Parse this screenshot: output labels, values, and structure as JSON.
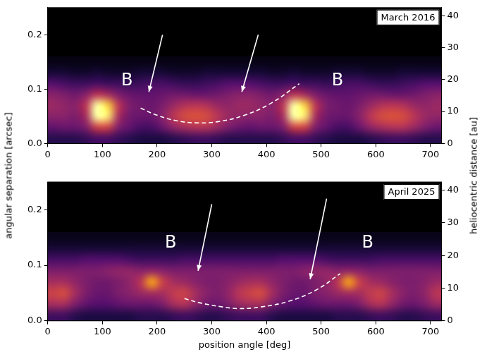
{
  "chart_data": [
    {
      "type": "heatmap",
      "title": "March 2016",
      "y_label": "angular separation [arcsec]",
      "y2_label": "heliocentric distance [au]",
      "xlim": [
        0,
        720
      ],
      "xticks": [
        0,
        100,
        200,
        300,
        400,
        500,
        600,
        700
      ],
      "ylim": [
        0,
        0.25
      ],
      "yticks": [
        {
          "value": 0,
          "label": "0.0"
        },
        {
          "value": 0.1,
          "label": "0.1"
        },
        {
          "value": 0.2,
          "label": "0.2"
        }
      ],
      "y2lim": [
        0,
        42.5
      ],
      "y2ticks": [
        0,
        10,
        20,
        30,
        40
      ],
      "heatmap": {
        "x_bins": [
          0,
          20,
          40,
          60,
          80,
          100,
          120,
          140,
          160,
          180,
          200,
          220,
          240,
          260,
          280,
          300,
          320,
          340,
          360,
          380,
          400,
          420,
          440,
          460,
          480,
          500,
          520,
          540,
          560,
          580,
          600,
          620,
          640,
          660,
          680,
          700,
          720
        ],
        "y_bins": [
          0,
          0.02,
          0.04,
          0.06,
          0.08,
          0.1,
          0.12,
          0.14,
          0.16
        ],
        "cells": [
          [
            0.15,
            0.15,
            0.15,
            0.18,
            0.22,
            0.22,
            0.18,
            0.15,
            0.12,
            0.12,
            0.12,
            0.15,
            0.18,
            0.2,
            0.2,
            0.18,
            0.15,
            0.15,
            0.15,
            0.15,
            0.15,
            0.18,
            0.22,
            0.22,
            0.18,
            0.15,
            0.12,
            0.12,
            0.12,
            0.15,
            0.18,
            0.2,
            0.2,
            0.18,
            0.15,
            0.15
          ],
          [
            0.28,
            0.3,
            0.3,
            0.35,
            0.55,
            0.55,
            0.35,
            0.28,
            0.22,
            0.22,
            0.3,
            0.4,
            0.45,
            0.48,
            0.48,
            0.42,
            0.35,
            0.3,
            0.28,
            0.3,
            0.3,
            0.35,
            0.55,
            0.55,
            0.35,
            0.28,
            0.22,
            0.22,
            0.3,
            0.4,
            0.45,
            0.48,
            0.48,
            0.42,
            0.35,
            0.3
          ],
          [
            0.38,
            0.38,
            0.35,
            0.45,
            1,
            0.95,
            0.45,
            0.32,
            0.3,
            0.3,
            0.38,
            0.5,
            0.58,
            0.6,
            0.58,
            0.5,
            0.42,
            0.4,
            0.38,
            0.38,
            0.35,
            0.45,
            1,
            0.95,
            0.45,
            0.32,
            0.3,
            0.3,
            0.38,
            0.5,
            0.58,
            0.6,
            0.58,
            0.5,
            0.42,
            0.4
          ],
          [
            0.42,
            0.4,
            0.38,
            0.5,
            1,
            0.9,
            0.5,
            0.35,
            0.32,
            0.3,
            0.35,
            0.42,
            0.48,
            0.5,
            0.48,
            0.42,
            0.4,
            0.42,
            0.42,
            0.4,
            0.38,
            0.5,
            1,
            0.9,
            0.5,
            0.35,
            0.32,
            0.3,
            0.35,
            0.42,
            0.48,
            0.5,
            0.48,
            0.42,
            0.4,
            0.42
          ],
          [
            0.38,
            0.35,
            0.32,
            0.38,
            0.5,
            0.45,
            0.35,
            0.3,
            0.28,
            0.28,
            0.3,
            0.32,
            0.32,
            0.3,
            0.3,
            0.32,
            0.35,
            0.38,
            0.38,
            0.35,
            0.32,
            0.38,
            0.5,
            0.45,
            0.35,
            0.3,
            0.28,
            0.28,
            0.3,
            0.32,
            0.32,
            0.3,
            0.3,
            0.32,
            0.35,
            0.38
          ],
          [
            0.25,
            0.22,
            0.2,
            0.2,
            0.22,
            0.2,
            0.2,
            0.18,
            0.2,
            0.22,
            0.22,
            0.2,
            0.18,
            0.18,
            0.2,
            0.22,
            0.25,
            0.25,
            0.25,
            0.22,
            0.2,
            0.2,
            0.22,
            0.2,
            0.2,
            0.18,
            0.2,
            0.22,
            0.22,
            0.2,
            0.18,
            0.18,
            0.2,
            0.22,
            0.25,
            0.25
          ],
          [
            0.1,
            0.1,
            0.08,
            0.08,
            0.1,
            0.08,
            0.08,
            0.08,
            0.1,
            0.1,
            0.1,
            0.08,
            0.08,
            0.08,
            0.1,
            0.1,
            0.1,
            0.1,
            0.1,
            0.1,
            0.08,
            0.08,
            0.1,
            0.08,
            0.08,
            0.08,
            0.1,
            0.1,
            0.1,
            0.08,
            0.08,
            0.08,
            0.1,
            0.1,
            0.1,
            0.1
          ],
          [
            0.03,
            0.03,
            0.03,
            0.03,
            0.03,
            0.03,
            0.03,
            0.03,
            0.03,
            0.03,
            0.03,
            0.03,
            0.03,
            0.03,
            0.03,
            0.03,
            0.03,
            0.03,
            0.03,
            0.03,
            0.03,
            0.03,
            0.03,
            0.03,
            0.03,
            0.03,
            0.03,
            0.03,
            0.03,
            0.03,
            0.03,
            0.03,
            0.03,
            0.03,
            0.03,
            0.03
          ]
        ]
      },
      "series": [
        {
          "color": "#ffffff",
          "line_style": "dashed",
          "marker": "none",
          "x": [
            170,
            200,
            235,
            270,
            310,
            360,
            410,
            460
          ],
          "values": [
            0.065,
            0.052,
            0.042,
            0.038,
            0.04,
            0.052,
            0.075,
            0.11
          ]
        }
      ],
      "annotations": [
        {
          "text": "B",
          "x": 145,
          "y": 0.115
        },
        {
          "text": "B",
          "x": 530,
          "y": 0.115
        }
      ],
      "arrows": [
        {
          "x": [
            210,
            185
          ],
          "y": [
            0.2,
            0.095
          ]
        },
        {
          "x": [
            385,
            355
          ],
          "y": [
            0.2,
            0.095
          ]
        }
      ]
    },
    {
      "type": "heatmap",
      "title": "April 2025",
      "x_label": "position angle [deg]",
      "xlim": [
        0,
        720
      ],
      "xticks": [
        0,
        100,
        200,
        300,
        400,
        500,
        600,
        700
      ],
      "ylim": [
        0,
        0.25
      ],
      "yticks": [
        {
          "value": 0,
          "label": "0.0"
        },
        {
          "value": 0.1,
          "label": "0.1"
        },
        {
          "value": 0.2,
          "label": "0.2"
        }
      ],
      "y2lim": [
        0,
        42.5
      ],
      "y2ticks": [
        0,
        10,
        20,
        30,
        40
      ],
      "heatmap": {
        "x_bins": [
          0,
          20,
          40,
          60,
          80,
          100,
          120,
          140,
          160,
          180,
          200,
          220,
          240,
          260,
          280,
          300,
          320,
          340,
          360,
          380,
          400,
          420,
          440,
          460,
          480,
          500,
          520,
          540,
          560,
          580,
          600,
          620,
          640,
          660,
          680,
          700,
          720
        ],
        "y_bins": [
          0,
          0.02,
          0.04,
          0.06,
          0.08,
          0.1,
          0.12,
          0.14,
          0.16
        ],
        "cells": [
          [
            0.2,
            0.2,
            0.15,
            0.12,
            0.12,
            0.12,
            0.12,
            0.12,
            0.15,
            0.15,
            0.15,
            0.18,
            0.2,
            0.18,
            0.15,
            0.15,
            0.18,
            0.2,
            0.2,
            0.2,
            0.15,
            0.12,
            0.12,
            0.12,
            0.12,
            0.12,
            0.15,
            0.15,
            0.15,
            0.18,
            0.2,
            0.18,
            0.15,
            0.15,
            0.18,
            0.2
          ],
          [
            0.45,
            0.45,
            0.35,
            0.28,
            0.25,
            0.25,
            0.28,
            0.3,
            0.3,
            0.3,
            0.35,
            0.45,
            0.48,
            0.4,
            0.32,
            0.3,
            0.35,
            0.42,
            0.45,
            0.45,
            0.35,
            0.28,
            0.25,
            0.25,
            0.28,
            0.3,
            0.3,
            0.3,
            0.35,
            0.45,
            0.48,
            0.4,
            0.32,
            0.3,
            0.35,
            0.42
          ],
          [
            0.55,
            0.58,
            0.45,
            0.35,
            0.3,
            0.3,
            0.35,
            0.38,
            0.42,
            0.45,
            0.45,
            0.52,
            0.55,
            0.45,
            0.38,
            0.35,
            0.4,
            0.5,
            0.55,
            0.58,
            0.45,
            0.35,
            0.3,
            0.3,
            0.35,
            0.38,
            0.42,
            0.45,
            0.45,
            0.52,
            0.55,
            0.45,
            0.38,
            0.35,
            0.4,
            0.5
          ],
          [
            0.45,
            0.45,
            0.4,
            0.35,
            0.32,
            0.32,
            0.35,
            0.4,
            0.5,
            0.8,
            0.55,
            0.45,
            0.42,
            0.38,
            0.35,
            0.35,
            0.38,
            0.42,
            0.45,
            0.45,
            0.4,
            0.35,
            0.32,
            0.32,
            0.35,
            0.4,
            0.5,
            0.8,
            0.55,
            0.45,
            0.42,
            0.38,
            0.35,
            0.35,
            0.38,
            0.42
          ],
          [
            0.35,
            0.35,
            0.35,
            0.35,
            0.35,
            0.38,
            0.4,
            0.4,
            0.38,
            0.4,
            0.38,
            0.35,
            0.35,
            0.35,
            0.35,
            0.35,
            0.35,
            0.35,
            0.35,
            0.35,
            0.35,
            0.35,
            0.35,
            0.38,
            0.4,
            0.4,
            0.38,
            0.4,
            0.38,
            0.35,
            0.35,
            0.35,
            0.35,
            0.35,
            0.35,
            0.35
          ],
          [
            0.22,
            0.22,
            0.22,
            0.25,
            0.25,
            0.25,
            0.25,
            0.22,
            0.2,
            0.2,
            0.2,
            0.2,
            0.22,
            0.22,
            0.22,
            0.22,
            0.22,
            0.22,
            0.22,
            0.22,
            0.22,
            0.25,
            0.25,
            0.25,
            0.25,
            0.22,
            0.2,
            0.2,
            0.2,
            0.2,
            0.22,
            0.22,
            0.22,
            0.22,
            0.22,
            0.22
          ],
          [
            0.1,
            0.1,
            0.1,
            0.1,
            0.1,
            0.1,
            0.1,
            0.1,
            0.1,
            0.1,
            0.1,
            0.1,
            0.1,
            0.1,
            0.1,
            0.1,
            0.1,
            0.1,
            0.1,
            0.1,
            0.1,
            0.1,
            0.1,
            0.1,
            0.1,
            0.1,
            0.1,
            0.1,
            0.1,
            0.1,
            0.1,
            0.1,
            0.1,
            0.1,
            0.1,
            0.1
          ],
          [
            0.04,
            0.04,
            0.04,
            0.04,
            0.04,
            0.04,
            0.04,
            0.04,
            0.04,
            0.04,
            0.04,
            0.04,
            0.04,
            0.04,
            0.04,
            0.04,
            0.04,
            0.04,
            0.04,
            0.04,
            0.04,
            0.04,
            0.04,
            0.04,
            0.04,
            0.04,
            0.04,
            0.04,
            0.04,
            0.04,
            0.04,
            0.04,
            0.04,
            0.04,
            0.04,
            0.04
          ]
        ]
      },
      "series": [
        {
          "color": "#ffffff",
          "line_style": "dashed",
          "marker": "none",
          "x": [
            250,
            280,
            320,
            350,
            390,
            440,
            490,
            535
          ],
          "values": [
            0.04,
            0.032,
            0.025,
            0.022,
            0.025,
            0.035,
            0.055,
            0.085
          ]
        }
      ],
      "annotations": [
        {
          "text": "B",
          "x": 225,
          "y": 0.14
        },
        {
          "text": "B",
          "x": 585,
          "y": 0.14
        }
      ],
      "arrows": [
        {
          "x": [
            300,
            275
          ],
          "y": [
            0.21,
            0.09
          ]
        },
        {
          "x": [
            510,
            480
          ],
          "y": [
            0.22,
            0.075
          ]
        }
      ]
    }
  ]
}
